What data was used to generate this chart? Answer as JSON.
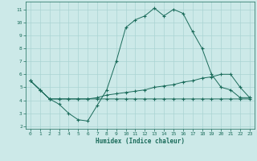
{
  "xlabel": "Humidex (Indice chaleur)",
  "bg_color": "#cce9e8",
  "grid_color": "#aad4d3",
  "line_color": "#1a6b5a",
  "xlim": [
    -0.5,
    23.5
  ],
  "ylim": [
    1.8,
    11.6
  ],
  "xticks": [
    0,
    1,
    2,
    3,
    4,
    5,
    6,
    7,
    8,
    9,
    10,
    11,
    12,
    13,
    14,
    15,
    16,
    17,
    18,
    19,
    20,
    21,
    22,
    23
  ],
  "yticks": [
    2,
    3,
    4,
    5,
    6,
    7,
    8,
    9,
    10,
    11
  ],
  "curve1_x": [
    0,
    1,
    2,
    3,
    4,
    5,
    6,
    7,
    8,
    9,
    10,
    11,
    12,
    13,
    14,
    15,
    16,
    17,
    18,
    19,
    20,
    21,
    22,
    23
  ],
  "curve1_y": [
    5.5,
    4.8,
    4.1,
    3.7,
    3.0,
    2.5,
    2.4,
    3.6,
    4.8,
    7.0,
    9.6,
    10.2,
    10.5,
    11.1,
    10.5,
    11.0,
    10.7,
    9.3,
    8.0,
    6.0,
    5.0,
    4.8,
    4.2,
    4.2
  ],
  "curve2_x": [
    0,
    1,
    2,
    3,
    4,
    5,
    6,
    7,
    8,
    9,
    10,
    11,
    12,
    13,
    14,
    15,
    16,
    17,
    18,
    19,
    20,
    21,
    22,
    23
  ],
  "curve2_y": [
    5.5,
    4.8,
    4.1,
    4.1,
    4.1,
    4.1,
    4.1,
    4.2,
    4.4,
    4.5,
    4.6,
    4.7,
    4.8,
    5.0,
    5.1,
    5.2,
    5.4,
    5.5,
    5.7,
    5.8,
    6.0,
    6.0,
    5.0,
    4.2
  ],
  "curve3_x": [
    0,
    1,
    2,
    3,
    4,
    5,
    6,
    7,
    8,
    9,
    10,
    11,
    12,
    13,
    14,
    15,
    16,
    17,
    18,
    19,
    20,
    21,
    22,
    23
  ],
  "curve3_y": [
    5.5,
    4.8,
    4.1,
    4.1,
    4.1,
    4.1,
    4.1,
    4.1,
    4.1,
    4.1,
    4.1,
    4.1,
    4.1,
    4.1,
    4.1,
    4.1,
    4.1,
    4.1,
    4.1,
    4.1,
    4.1,
    4.1,
    4.1,
    4.1
  ]
}
